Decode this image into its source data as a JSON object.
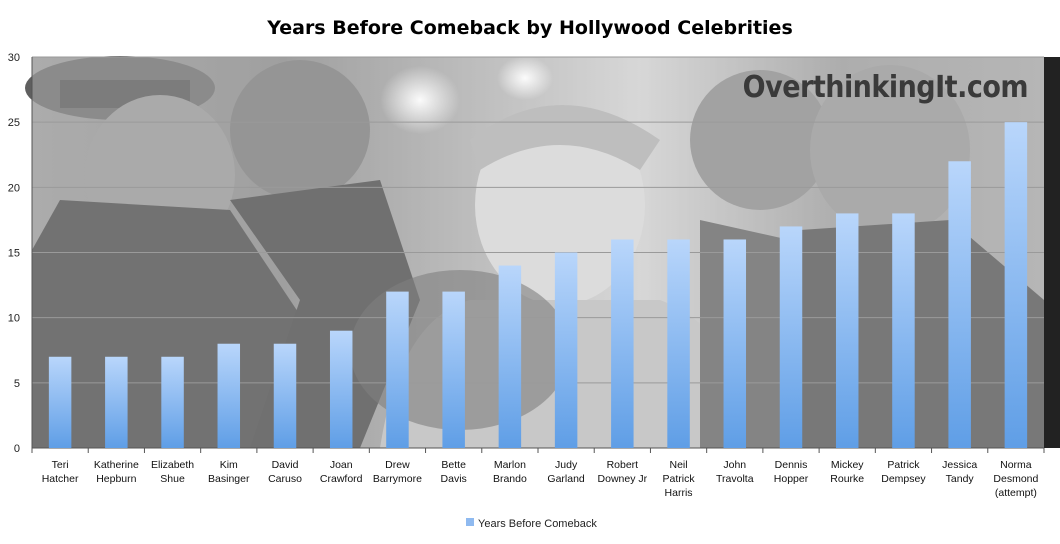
{
  "chart_data": {
    "type": "bar",
    "title": "Years Before Comeback by Hollywood Celebrities",
    "categories": [
      [
        "Teri",
        "Hatcher"
      ],
      [
        "Katherine",
        "Hepburn"
      ],
      [
        "Elizabeth",
        "Shue"
      ],
      [
        "Kim",
        "Basinger"
      ],
      [
        "David",
        "Caruso"
      ],
      [
        "Joan",
        "Crawford"
      ],
      [
        "Drew",
        "Barrymore"
      ],
      [
        "Bette",
        "Davis"
      ],
      [
        "Marlon",
        "Brando"
      ],
      [
        "Judy",
        "Garland"
      ],
      [
        "Robert",
        "Downey Jr"
      ],
      [
        "Neil",
        "Patrick",
        "Harris"
      ],
      [
        "John",
        "Travolta"
      ],
      [
        "Dennis",
        "Hopper"
      ],
      [
        "Mickey",
        "Rourke"
      ],
      [
        "Patrick",
        "Dempsey"
      ],
      [
        "Jessica",
        "Tandy"
      ],
      [
        "Norma",
        "Desmond",
        "(attempt)"
      ]
    ],
    "series": [
      {
        "name": "Years Before Comeback",
        "values": [
          7,
          7,
          7,
          8,
          8,
          9,
          12,
          12,
          14,
          15,
          16,
          16,
          16,
          17,
          18,
          18,
          22,
          25
        ],
        "color": "#8fbaf0"
      }
    ],
    "xlabel": "",
    "ylabel": "",
    "ylim": [
      0,
      30
    ],
    "yticks": [
      0,
      5,
      10,
      15,
      20,
      25,
      30
    ],
    "grid": true,
    "legend_position": "bottom",
    "watermark": "OverthinkingIt.com",
    "background": "grayscale photo"
  }
}
